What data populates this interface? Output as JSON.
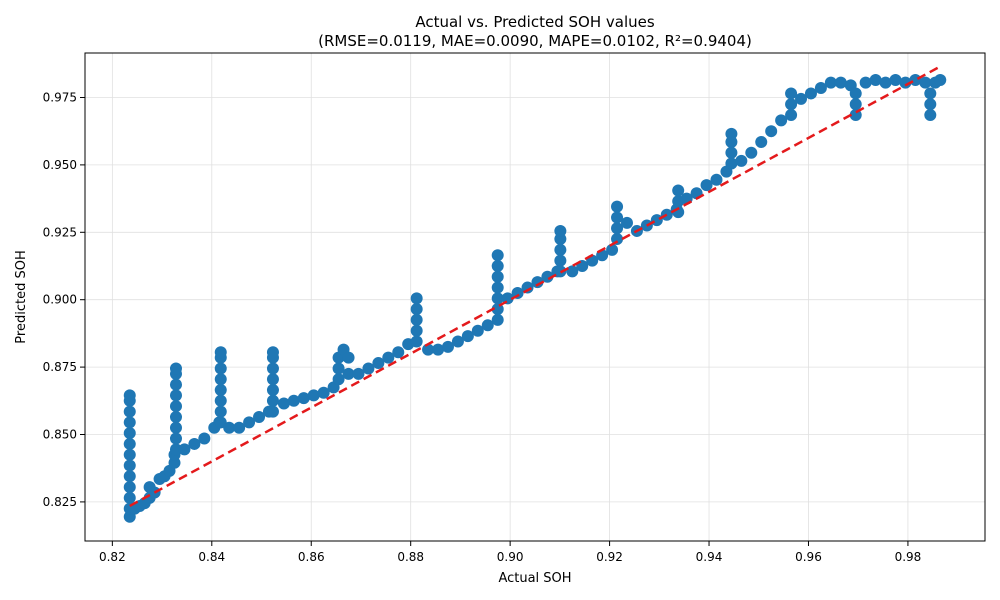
{
  "chart_data": {
    "type": "scatter",
    "title": "Actual vs. Predicted SOH values",
    "subtitle": "(RMSE=0.0119, MAE=0.0090, MAPE=0.0102, R²=0.9404)",
    "xlabel": "Actual SOH",
    "ylabel": "Predicted SOH",
    "xlim": [
      0.8145,
      0.9955
    ],
    "ylim": [
      0.8105,
      0.9915
    ],
    "xticks": [
      "0.82",
      "0.84",
      "0.86",
      "0.88",
      "0.90",
      "0.92",
      "0.94",
      "0.96",
      "0.98"
    ],
    "yticks": [
      "0.825",
      "0.850",
      "0.875",
      "0.900",
      "0.925",
      "0.950",
      "0.975"
    ],
    "grid": true,
    "colors": {
      "points": "#1f77b4",
      "reference_line": "#e41a1c",
      "grid": "#e0e0e0",
      "axis": "#000000"
    },
    "series": [
      {
        "type": "scatter",
        "points": [
          [
            0.8235,
            0.8195
          ],
          [
            0.8235,
            0.8225
          ],
          [
            0.8235,
            0.8265
          ],
          [
            0.8235,
            0.8305
          ],
          [
            0.8235,
            0.8345
          ],
          [
            0.8235,
            0.8385
          ],
          [
            0.8235,
            0.8425
          ],
          [
            0.8235,
            0.8465
          ],
          [
            0.8235,
            0.8505
          ],
          [
            0.8235,
            0.8545
          ],
          [
            0.8235,
            0.8585
          ],
          [
            0.8235,
            0.8625
          ],
          [
            0.8235,
            0.8645
          ],
          [
            0.8245,
            0.8225
          ],
          [
            0.8255,
            0.8235
          ],
          [
            0.8265,
            0.8245
          ],
          [
            0.8275,
            0.8265
          ],
          [
            0.8275,
            0.8305
          ],
          [
            0.8285,
            0.8285
          ],
          [
            0.8295,
            0.8335
          ],
          [
            0.8305,
            0.8345
          ],
          [
            0.8315,
            0.8365
          ],
          [
            0.8325,
            0.8395
          ],
          [
            0.8325,
            0.8425
          ],
          [
            0.8328,
            0.8445
          ],
          [
            0.8328,
            0.8485
          ],
          [
            0.8328,
            0.8525
          ],
          [
            0.8328,
            0.8565
          ],
          [
            0.8328,
            0.8605
          ],
          [
            0.8328,
            0.8645
          ],
          [
            0.8328,
            0.8685
          ],
          [
            0.8328,
            0.8725
          ],
          [
            0.8328,
            0.8745
          ],
          [
            0.8345,
            0.8445
          ],
          [
            0.8365,
            0.8465
          ],
          [
            0.8385,
            0.8485
          ],
          [
            0.8405,
            0.8525
          ],
          [
            0.8415,
            0.8545
          ],
          [
            0.8418,
            0.8545
          ],
          [
            0.8418,
            0.8585
          ],
          [
            0.8418,
            0.8625
          ],
          [
            0.8418,
            0.8665
          ],
          [
            0.8418,
            0.8705
          ],
          [
            0.8418,
            0.8745
          ],
          [
            0.8418,
            0.8785
          ],
          [
            0.8418,
            0.8805
          ],
          [
            0.8435,
            0.8525
          ],
          [
            0.8455,
            0.8525
          ],
          [
            0.8475,
            0.8545
          ],
          [
            0.8495,
            0.8565
          ],
          [
            0.8515,
            0.8585
          ],
          [
            0.8523,
            0.8585
          ],
          [
            0.8523,
            0.8625
          ],
          [
            0.8523,
            0.8665
          ],
          [
            0.8523,
            0.8705
          ],
          [
            0.8523,
            0.8745
          ],
          [
            0.8523,
            0.8785
          ],
          [
            0.8523,
            0.8805
          ],
          [
            0.8545,
            0.8615
          ],
          [
            0.8565,
            0.8625
          ],
          [
            0.8585,
            0.8635
          ],
          [
            0.8605,
            0.8645
          ],
          [
            0.8625,
            0.8655
          ],
          [
            0.8645,
            0.8675
          ],
          [
            0.8655,
            0.8705
          ],
          [
            0.8655,
            0.8745
          ],
          [
            0.8655,
            0.8785
          ],
          [
            0.8665,
            0.8815
          ],
          [
            0.8675,
            0.8785
          ],
          [
            0.8675,
            0.8725
          ],
          [
            0.8695,
            0.8725
          ],
          [
            0.8715,
            0.8745
          ],
          [
            0.8735,
            0.8765
          ],
          [
            0.8755,
            0.8785
          ],
          [
            0.8775,
            0.8805
          ],
          [
            0.8795,
            0.8835
          ],
          [
            0.8812,
            0.8845
          ],
          [
            0.8812,
            0.8885
          ],
          [
            0.8812,
            0.8925
          ],
          [
            0.8812,
            0.8965
          ],
          [
            0.8812,
            0.9005
          ],
          [
            0.8835,
            0.8815
          ],
          [
            0.8855,
            0.8815
          ],
          [
            0.8875,
            0.8825
          ],
          [
            0.8895,
            0.8845
          ],
          [
            0.8915,
            0.8865
          ],
          [
            0.8935,
            0.8885
          ],
          [
            0.8955,
            0.8905
          ],
          [
            0.8975,
            0.8925
          ],
          [
            0.8975,
            0.8965
          ],
          [
            0.8975,
            0.9005
          ],
          [
            0.8975,
            0.9045
          ],
          [
            0.8975,
            0.9085
          ],
          [
            0.8975,
            0.9125
          ],
          [
            0.8975,
            0.9165
          ],
          [
            0.8995,
            0.9005
          ],
          [
            0.9015,
            0.9025
          ],
          [
            0.9035,
            0.9045
          ],
          [
            0.9055,
            0.9065
          ],
          [
            0.9075,
            0.9085
          ],
          [
            0.9095,
            0.9105
          ],
          [
            0.9101,
            0.9105
          ],
          [
            0.9101,
            0.9145
          ],
          [
            0.9101,
            0.9185
          ],
          [
            0.9101,
            0.9225
          ],
          [
            0.9101,
            0.9255
          ],
          [
            0.9125,
            0.9105
          ],
          [
            0.9145,
            0.9125
          ],
          [
            0.9165,
            0.9145
          ],
          [
            0.9185,
            0.9165
          ],
          [
            0.9205,
            0.9185
          ],
          [
            0.9215,
            0.9225
          ],
          [
            0.9215,
            0.9265
          ],
          [
            0.9215,
            0.9305
          ],
          [
            0.9215,
            0.9345
          ],
          [
            0.9235,
            0.9285
          ],
          [
            0.9255,
            0.9255
          ],
          [
            0.9275,
            0.9275
          ],
          [
            0.9295,
            0.9295
          ],
          [
            0.9315,
            0.9315
          ],
          [
            0.9335,
            0.9335
          ],
          [
            0.9338,
            0.9325
          ],
          [
            0.9338,
            0.9365
          ],
          [
            0.9338,
            0.9405
          ],
          [
            0.9355,
            0.9375
          ],
          [
            0.9375,
            0.9395
          ],
          [
            0.9395,
            0.9425
          ],
          [
            0.9415,
            0.9445
          ],
          [
            0.9435,
            0.9475
          ],
          [
            0.9445,
            0.9505
          ],
          [
            0.9445,
            0.9545
          ],
          [
            0.9445,
            0.9585
          ],
          [
            0.9445,
            0.9615
          ],
          [
            0.9465,
            0.9515
          ],
          [
            0.9485,
            0.9545
          ],
          [
            0.9505,
            0.9585
          ],
          [
            0.9525,
            0.9625
          ],
          [
            0.9545,
            0.9665
          ],
          [
            0.9565,
            0.9685
          ],
          [
            0.9565,
            0.9725
          ],
          [
            0.9565,
            0.9765
          ],
          [
            0.9585,
            0.9745
          ],
          [
            0.9605,
            0.9765
          ],
          [
            0.9625,
            0.9785
          ],
          [
            0.9645,
            0.9805
          ],
          [
            0.9665,
            0.9805
          ],
          [
            0.9685,
            0.9795
          ],
          [
            0.9695,
            0.9765
          ],
          [
            0.9695,
            0.9725
          ],
          [
            0.9695,
            0.9685
          ],
          [
            0.9715,
            0.9805
          ],
          [
            0.9735,
            0.9815
          ],
          [
            0.9755,
            0.9805
          ],
          [
            0.9775,
            0.9815
          ],
          [
            0.9795,
            0.9805
          ],
          [
            0.9815,
            0.9815
          ],
          [
            0.9835,
            0.9805
          ],
          [
            0.9845,
            0.9765
          ],
          [
            0.9845,
            0.9725
          ],
          [
            0.9845,
            0.9685
          ],
          [
            0.9855,
            0.9805
          ],
          [
            0.9865,
            0.9815
          ]
        ]
      },
      {
        "type": "line",
        "style": "dashed",
        "points": [
          [
            0.8235,
            0.8235
          ],
          [
            0.9865,
            0.9865
          ]
        ]
      }
    ]
  }
}
